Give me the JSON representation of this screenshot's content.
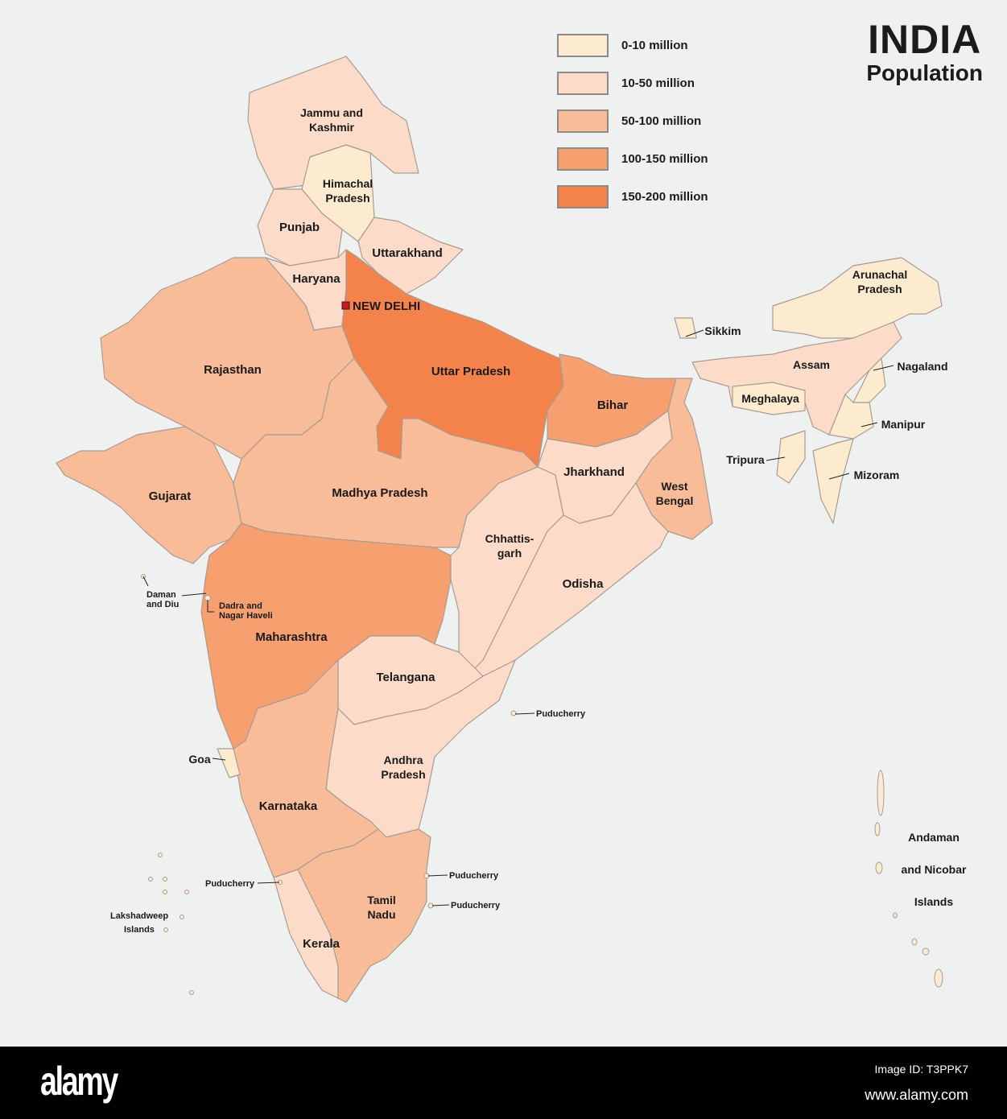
{
  "title": {
    "main": "INDIA",
    "sub": "Population"
  },
  "legend": [
    {
      "label": "0-10 million",
      "color": "#fdebcf"
    },
    {
      "label": "10-50 million",
      "color": "#fcdcc8"
    },
    {
      "label": "50-100 million",
      "color": "#f8bd98"
    },
    {
      "label": "100-150 million",
      "color": "#f6a070"
    },
    {
      "label": "150-200 million",
      "color": "#f3834a"
    }
  ],
  "states": [
    {
      "name": "Jammu and Kashmir",
      "lines": [
        "Jammu and",
        "Kashmir"
      ],
      "class": 1
    },
    {
      "name": "Himachal Pradesh",
      "lines": [
        "Himachal",
        "Pradesh"
      ],
      "class": 0
    },
    {
      "name": "Punjab",
      "lines": [
        "Punjab"
      ],
      "class": 1
    },
    {
      "name": "Uttarakhand",
      "lines": [
        "Uttarakhand"
      ],
      "class": 1
    },
    {
      "name": "Haryana",
      "lines": [
        "Haryana"
      ],
      "class": 1
    },
    {
      "name": "Rajasthan",
      "lines": [
        "Rajasthan"
      ],
      "class": 2
    },
    {
      "name": "Uttar Pradesh",
      "lines": [
        "Uttar Pradesh"
      ],
      "class": 4
    },
    {
      "name": "Bihar",
      "lines": [
        "Bihar"
      ],
      "class": 3
    },
    {
      "name": "Gujarat",
      "lines": [
        "Gujarat"
      ],
      "class": 2
    },
    {
      "name": "Madhya Pradesh",
      "lines": [
        "Madhya Pradesh"
      ],
      "class": 2
    },
    {
      "name": "Maharashtra",
      "lines": [
        "Maharashtra"
      ],
      "class": 3
    },
    {
      "name": "Chhattisgarh",
      "lines": [
        "Chhattis-",
        "garh"
      ],
      "class": 1
    },
    {
      "name": "Jharkhand",
      "lines": [
        "Jharkhand"
      ],
      "class": 1
    },
    {
      "name": "West Bengal",
      "lines": [
        "West",
        "Bengal"
      ],
      "class": 2
    },
    {
      "name": "Odisha",
      "lines": [
        "Odisha"
      ],
      "class": 1
    },
    {
      "name": "Telangana",
      "lines": [
        "Telangana"
      ],
      "class": 1
    },
    {
      "name": "Andhra Pradesh",
      "lines": [
        "Andhra",
        "Pradesh"
      ],
      "class": 1
    },
    {
      "name": "Karnataka",
      "lines": [
        "Karnataka"
      ],
      "class": 2
    },
    {
      "name": "Kerala",
      "lines": [
        "Kerala"
      ],
      "class": 1
    },
    {
      "name": "Tamil Nadu",
      "lines": [
        "Tamil",
        "Nadu"
      ],
      "class": 2
    },
    {
      "name": "Goa",
      "lines": [
        "Goa"
      ],
      "class": 0
    },
    {
      "name": "Sikkim",
      "lines": [
        "Sikkim"
      ],
      "class": 0
    },
    {
      "name": "Arunachal Pradesh",
      "lines": [
        "Arunachal",
        "Pradesh"
      ],
      "class": 0
    },
    {
      "name": "Assam",
      "lines": [
        "Assam"
      ],
      "class": 1
    },
    {
      "name": "Meghalaya",
      "lines": [
        "Meghalaya"
      ],
      "class": 0
    },
    {
      "name": "Nagaland",
      "lines": [
        "Nagaland"
      ],
      "class": 0
    },
    {
      "name": "Manipur",
      "lines": [
        "Manipur"
      ],
      "class": 0
    },
    {
      "name": "Mizoram",
      "lines": [
        "Mizoram"
      ],
      "class": 0
    },
    {
      "name": "Tripura",
      "lines": [
        "Tripura"
      ],
      "class": 0
    }
  ],
  "small_labels": {
    "daman": [
      "Daman",
      "and Diu"
    ],
    "dadra": [
      "Dadra and",
      "Nagar Haveli"
    ],
    "puducherry": "Puducherry",
    "lakshadweep": [
      "Lakshadweep",
      "Islands"
    ],
    "andaman": [
      "Andaman",
      "and Nicobar",
      "Islands"
    ]
  },
  "capital": {
    "label": "NEW DELHI",
    "color": "#d7152a"
  },
  "footer": {
    "logo": "alamy",
    "image_id": "Image ID: T3PPK7",
    "url": "www.alamy.com"
  }
}
